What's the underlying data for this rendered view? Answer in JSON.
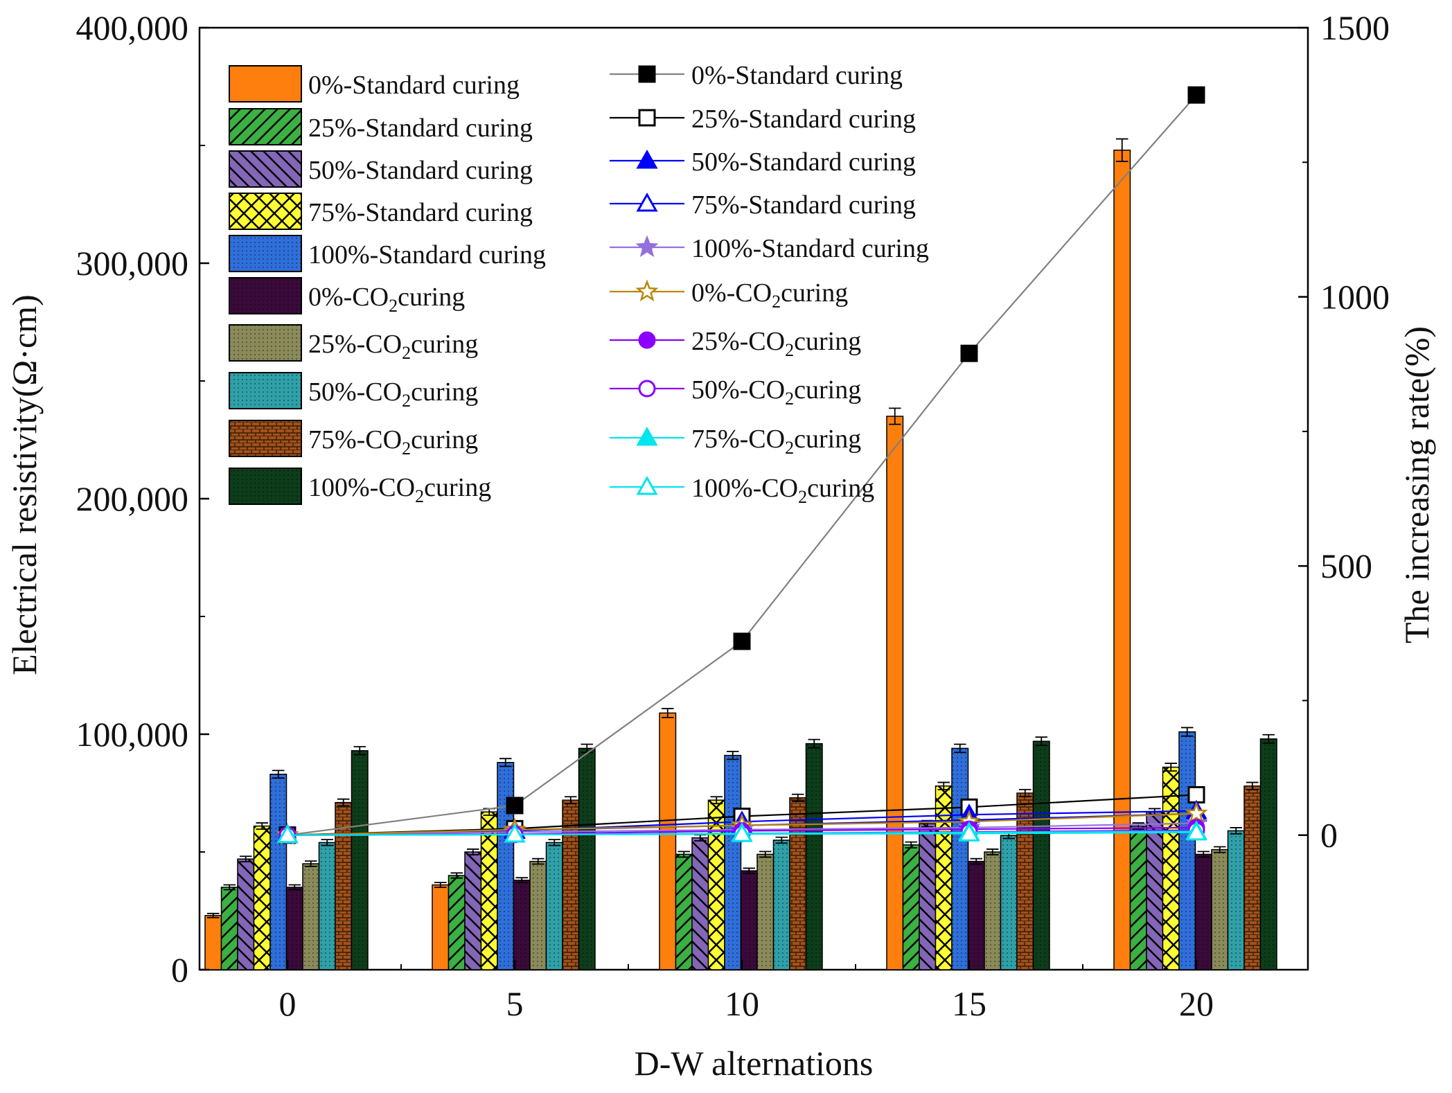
{
  "chart_data": {
    "type": "bar",
    "title": "",
    "xlabel": "D-W alternations",
    "ylabel": "Electrical resistivity(Ω·cm)",
    "y2label": "The increasing rate(%)",
    "categories": [
      "0",
      "5",
      "10",
      "15",
      "20"
    ],
    "ylim": [
      0,
      400000
    ],
    "y2lim": [
      -250,
      1500
    ],
    "yticks": [
      0,
      100000,
      200000,
      300000,
      400000
    ],
    "ytick_labels": [
      "0",
      "100,000",
      "200,000",
      "300,000",
      "400,000"
    ],
    "y2ticks": [
      0,
      500,
      1000,
      1500
    ],
    "y2tick_labels": [
      "0",
      "500",
      "1000",
      "1500"
    ],
    "series": [
      {
        "name": "0%-Standard curing",
        "name_main": "0%-Standard curing",
        "name_sub": "",
        "name_tail": "",
        "color": "#ff7f0e",
        "pattern": "solid",
        "values": [
          23000,
          36000,
          109000,
          235000,
          348000
        ]
      },
      {
        "name": "25%-Standard curing",
        "name_main": "25%-Standard curing",
        "name_sub": "",
        "name_tail": "",
        "color": "#3cb043",
        "pattern": "diag-up",
        "values": [
          35000,
          40000,
          49000,
          53000,
          61000
        ]
      },
      {
        "name": "50%-Standard curing",
        "name_main": "50%-Standard curing",
        "name_sub": "",
        "name_tail": "",
        "color": "#8466b8",
        "pattern": "diag-down",
        "values": [
          47000,
          50000,
          56000,
          62000,
          67000
        ]
      },
      {
        "name": "75%-Standard curing",
        "name_main": "75%-Standard curing",
        "name_sub": "",
        "name_tail": "",
        "color": "#ffff33",
        "pattern": "cross",
        "values": [
          61000,
          67000,
          72000,
          78000,
          86000
        ]
      },
      {
        "name": "100%-Standard curing",
        "name_main": "100%-Standard curing",
        "name_sub": "",
        "name_tail": "",
        "color": "#2f6fdb",
        "pattern": "dots",
        "values": [
          83000,
          88000,
          91000,
          94000,
          101000
        ]
      },
      {
        "name": "0%-CO2curing",
        "name_main": "0%-CO",
        "name_sub": "2",
        "name_tail": "curing",
        "color": "#3a0a3a",
        "pattern": "dots",
        "values": [
          35000,
          38000,
          42000,
          46000,
          49000
        ]
      },
      {
        "name": "25%-CO2curing",
        "name_main": "25%-CO",
        "name_sub": "2",
        "name_tail": "curing",
        "color": "#8a8a5a",
        "pattern": "dots",
        "values": [
          45000,
          46000,
          49000,
          50000,
          51000
        ]
      },
      {
        "name": "50%-CO2curing",
        "name_main": "50%-CO",
        "name_sub": "2",
        "name_tail": "curing",
        "color": "#2fa0a8",
        "pattern": "dots",
        "values": [
          54000,
          54000,
          55000,
          57000,
          59000
        ]
      },
      {
        "name": "75%-CO2curing",
        "name_main": "75%-CO",
        "name_sub": "2",
        "name_tail": "curing",
        "color": "#a0521d",
        "pattern": "brick",
        "values": [
          71000,
          72000,
          73000,
          75000,
          78000
        ]
      },
      {
        "name": "100%-CO2curing",
        "name_main": "100%-CO",
        "name_sub": "2",
        "name_tail": "curing",
        "color": "#0d3d1a",
        "pattern": "dots",
        "values": [
          93000,
          94000,
          96000,
          97000,
          98000
        ]
      }
    ],
    "rate_series": [
      {
        "name": "0%-Standard curing",
        "name_main": "0%-Standard curing",
        "name_sub": "",
        "name_tail": "",
        "color": "#808080",
        "marker": "square-filled",
        "values": [
          0,
          55,
          360,
          895,
          1375
        ]
      },
      {
        "name": "25%-Standard curing",
        "name_main": "25%-Standard curing",
        "name_sub": "",
        "name_tail": "",
        "color": "#000000",
        "marker": "square-open",
        "values": [
          0,
          12,
          35,
          52,
          75
        ]
      },
      {
        "name": "50%-Standard curing",
        "name_main": "50%-Standard curing",
        "name_sub": "",
        "name_tail": "",
        "color": "#0000ff",
        "marker": "triangle-filled",
        "values": [
          0,
          8,
          25,
          38,
          45
        ]
      },
      {
        "name": "75%-Standard curing",
        "name_main": "75%-Standard curing",
        "name_sub": "",
        "name_tail": "",
        "color": "#0000ff",
        "marker": "triangle-open",
        "values": [
          0,
          9,
          18,
          28,
          40
        ]
      },
      {
        "name": "100%-Standard curing",
        "name_main": "100%-Standard curing",
        "name_sub": "",
        "name_tail": "",
        "color": "#9370db",
        "marker": "star-filled",
        "values": [
          0,
          6,
          10,
          14,
          22
        ]
      },
      {
        "name": "0%-CO2curing",
        "name_main": "0%-CO",
        "name_sub": "2",
        "name_tail": "curing",
        "color": "#b8860b",
        "marker": "star-open",
        "values": [
          0,
          10,
          18,
          25,
          40
        ]
      },
      {
        "name": "25%-CO2curing",
        "name_main": "25%-CO",
        "name_sub": "2",
        "name_tail": "curing",
        "color": "#8b00ff",
        "marker": "circle-filled",
        "values": [
          0,
          2,
          8,
          11,
          14
        ]
      },
      {
        "name": "50%-CO2curing",
        "name_main": "50%-CO",
        "name_sub": "2",
        "name_tail": "curing",
        "color": "#8b00ff",
        "marker": "circle-open",
        "values": [
          0,
          1,
          3,
          6,
          9
        ]
      },
      {
        "name": "75%-CO2curing",
        "name_main": "75%-CO",
        "name_sub": "2",
        "name_tail": "curing",
        "color": "#00e5ee",
        "marker": "triangle-filled",
        "values": [
          0,
          1,
          3,
          5,
          7
        ]
      },
      {
        "name": "100%-CO2curing",
        "name_main": "100%-CO",
        "name_sub": "2",
        "name_tail": "curing",
        "color": "#00e5ee",
        "marker": "triangle-open",
        "values": [
          0,
          1,
          2,
          3,
          5
        ]
      }
    ],
    "error_bars": "small, on all bars",
    "legend_placement": "top-left (bars) and top-center (lines)"
  }
}
